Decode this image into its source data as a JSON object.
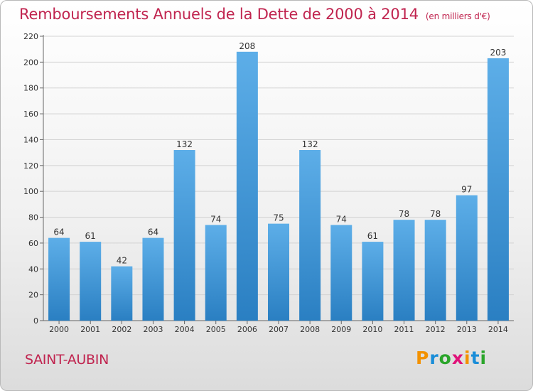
{
  "header": {
    "title": "Remboursements Annuels de la Dette de 2000 à 2014",
    "unit": "(en milliers d'€)"
  },
  "footer": {
    "place": "SAINT-AUBIN",
    "logo": "Proxiti"
  },
  "colors": {
    "title": "#c0244f",
    "bar_top": "#5daee8",
    "bar_bottom": "#2a7fc2",
    "grid": "#d2d2d2",
    "logo_letters": [
      "#f39200",
      "#1a8dd8",
      "#2aa52a",
      "#e0137a",
      "#f39200",
      "#1a8dd8",
      "#2aa52a"
    ]
  },
  "chart_data": {
    "type": "bar",
    "title": "Remboursements Annuels de la Dette de 2000 à 2014",
    "subtitle": "(en milliers d'€)",
    "xlabel": "",
    "ylabel": "",
    "categories": [
      "2000",
      "2001",
      "2002",
      "2003",
      "2004",
      "2005",
      "2006",
      "2007",
      "2008",
      "2009",
      "2010",
      "2011",
      "2012",
      "2013",
      "2014"
    ],
    "values": [
      64,
      61,
      42,
      64,
      132,
      74,
      208,
      75,
      132,
      74,
      61,
      78,
      78,
      97,
      203
    ],
    "ylim": [
      0,
      220
    ],
    "yticks": [
      0,
      20,
      40,
      60,
      80,
      100,
      120,
      140,
      160,
      180,
      200,
      220
    ],
    "grid": true,
    "data_labels": true
  }
}
